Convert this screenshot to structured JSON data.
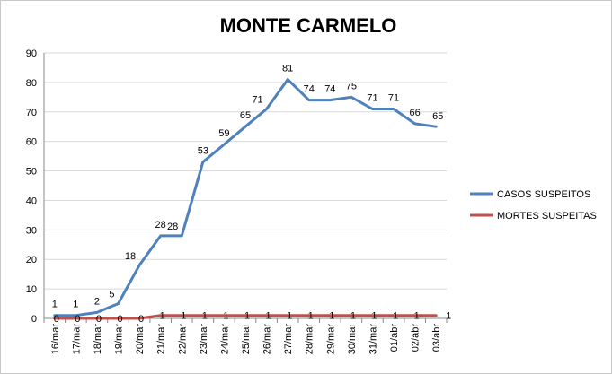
{
  "chart_data": {
    "type": "line",
    "title": "MONTE CARMELO",
    "xlabel": "",
    "ylabel": "",
    "ylim": [
      0,
      90
    ],
    "yticks": [
      "0",
      "10",
      "20",
      "30",
      "40",
      "50",
      "60",
      "70",
      "80",
      "90"
    ],
    "grid": "horizontal",
    "legend_position": "right",
    "categories": [
      "16/mar",
      "17/mar",
      "18/mar",
      "19/mar",
      "20/mar",
      "21/mar",
      "22/mar",
      "23/mar",
      "24/mar",
      "25/mar",
      "26/mar",
      "27/mar",
      "28/mar",
      "29/mar",
      "30/mar",
      "31/mar",
      "01/abr",
      "02/abr",
      "03/abr"
    ],
    "series": [
      {
        "name": "CASOS SUSPEITOS",
        "color": "#4f81bd",
        "values": [
          1,
          1,
          2,
          5,
          18,
          28,
          28,
          53,
          59,
          65,
          71,
          81,
          74,
          74,
          75,
          71,
          71,
          66,
          65
        ]
      },
      {
        "name": "MORTES SUSPEITAS",
        "color": "#c0504d",
        "values": [
          0,
          0,
          0,
          0,
          0,
          1,
          1,
          1,
          1,
          1,
          1,
          1,
          1,
          1,
          1,
          1,
          1,
          1,
          1
        ]
      }
    ]
  }
}
